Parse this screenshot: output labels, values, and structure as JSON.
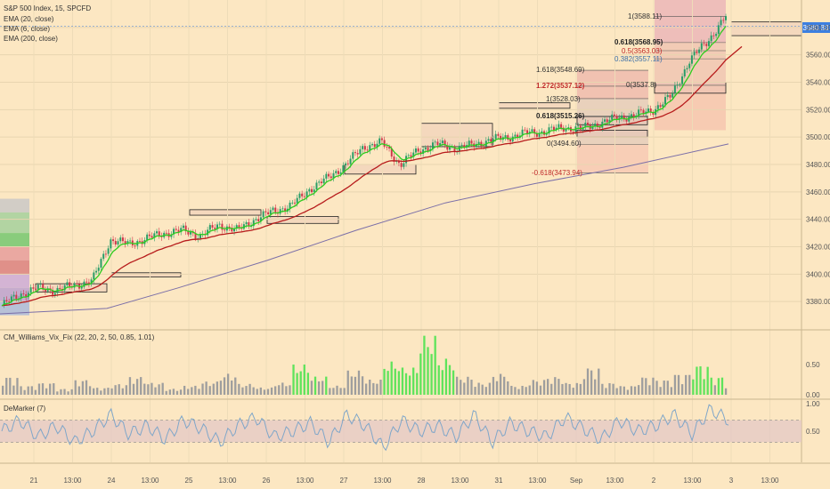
{
  "header": {
    "title": "S&P 500 Index, 15, SPCFD",
    "indicators": [
      "EMA (20, close)",
      "EMA (6, close)",
      "EMA (200, close)"
    ]
  },
  "price_badge": "3580.83",
  "panels": {
    "vix_title": "CM_Williams_Vix_Fix (22, 20, 2, 50, 0.85, 1.01)",
    "dem_title": "DeMarker (7)"
  },
  "fib_labels": {
    "right": [
      "1(3588.11)",
      "0.618(3568.95)",
      "0.5(3563.03)",
      "0.382(3557.11)",
      "0(3537.8)"
    ],
    "mid": [
      "1.618(3548.69)",
      "1.272(3537.12)",
      "1(3528.03)",
      "0.618(3515.26)",
      "0(3494.60)",
      "-0.618(3473.94)"
    ]
  },
  "colors": {
    "background": "#fce7c2",
    "ema6": "#2ecc1f",
    "ema20": "#b71c1c",
    "ema200": "#7b6fa8",
    "vix_high": "#5fe35b",
    "vix_normal": "#9e9e9e",
    "demarker": "#7fa6c9"
  },
  "chart_data": [
    {
      "type": "candlestick",
      "title": "S&P 500 Index, 15, SPCFD",
      "ylim": [
        3360,
        3600
      ],
      "y_ticks": [
        3380,
        3400,
        3420,
        3440,
        3460,
        3480,
        3500,
        3520,
        3540,
        3560,
        3580
      ],
      "x_ticks": [
        "21",
        "13:00",
        "24",
        "13:00",
        "25",
        "13:00",
        "26",
        "13:00",
        "27",
        "13:00",
        "28",
        "13:00",
        "31",
        "13:00",
        "Sep",
        "13:00",
        "2",
        "13:00",
        "3",
        "13:00"
      ],
      "close_path": [
        3377,
        3385,
        3390,
        3388,
        3392,
        3395,
        3425,
        3422,
        3426,
        3430,
        3432,
        3428,
        3436,
        3432,
        3440,
        3446,
        3450,
        3462,
        3470,
        3480,
        3493,
        3496,
        3480,
        3490,
        3495,
        3492,
        3494,
        3498,
        3500,
        3503,
        3504,
        3507,
        3506,
        3510,
        3514,
        3516,
        3520,
        3530,
        3556,
        3570,
        3588
      ],
      "last_price": 3580.83,
      "series": [
        {
          "name": "EMA (6, close)"
        },
        {
          "name": "EMA (20, close)"
        },
        {
          "name": "EMA (200, close)"
        }
      ]
    },
    {
      "type": "bar",
      "title": "CM_Williams_Vix_Fix (22, 20, 2, 50, 0.85, 1.01)",
      "ylim": [
        0,
        1.0
      ],
      "y_ticks": [
        "0.50",
        "0.00"
      ],
      "values_pattern": [
        0.3,
        0.15,
        0.2,
        0.1,
        0.25,
        0.12,
        0.18,
        0.3,
        0.2,
        0.1,
        0.15,
        0.22,
        0.35,
        0.18,
        0.12,
        0.2,
        0.5,
        0.3,
        0.15,
        0.4,
        0.25,
        0.55,
        0.45,
        0.98,
        0.6,
        0.3,
        0.2,
        0.35,
        0.15,
        0.25,
        0.3,
        0.2,
        0.45,
        0.2,
        0.15,
        0.3,
        0.25,
        0.35,
        0.5,
        0.3,
        0.2
      ],
      "highlight_indices": [
        9,
        10,
        14,
        15,
        16,
        17,
        21,
        22,
        23,
        24,
        29,
        34,
        38,
        39
      ]
    },
    {
      "type": "line",
      "title": "DeMarker (7)",
      "ylim": [
        0,
        1.0
      ],
      "y_ticks": [
        "1.00",
        "0.50"
      ],
      "band": [
        0.3,
        0.7
      ],
      "values_pattern": [
        0.5,
        0.7,
        0.4,
        0.6,
        0.3,
        0.5,
        0.8,
        0.45,
        0.6,
        0.35,
        0.7,
        0.55,
        0.3,
        0.6,
        0.75,
        0.4,
        0.5,
        0.65,
        0.3,
        0.8,
        0.6,
        0.2,
        0.7,
        0.5,
        0.6,
        0.4,
        0.8,
        0.3,
        0.65,
        0.5,
        0.4,
        0.75,
        0.55,
        0.35,
        0.7,
        0.5,
        0.6,
        0.8,
        0.45,
        0.9,
        0.7
      ]
    }
  ]
}
